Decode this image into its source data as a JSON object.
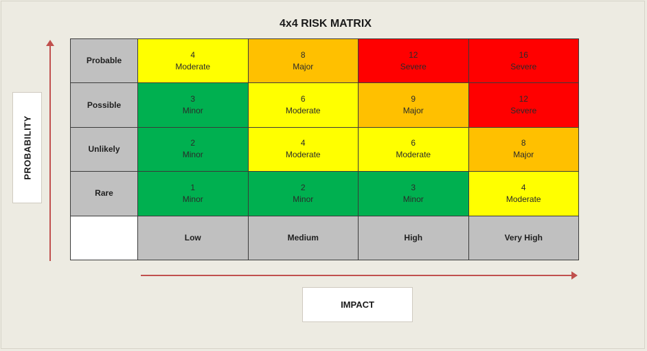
{
  "title": "4x4 RISK MATRIX",
  "axes": {
    "probability_label": "PROBABILITY",
    "impact_label": "IMPACT"
  },
  "colors": {
    "minor": "#00b050",
    "moderate": "#ffff00",
    "major": "#ffc000",
    "severe": "#ff0000",
    "header": "#c0c0c0",
    "arrow": "#c0504d"
  },
  "impact_levels": [
    "Low",
    "Medium",
    "High",
    "Very High"
  ],
  "rows": [
    {
      "probability": "Probable",
      "cells": [
        {
          "score": "4",
          "level": "Moderate"
        },
        {
          "score": "8",
          "level": "Major"
        },
        {
          "score": "12",
          "level": "Severe"
        },
        {
          "score": "16",
          "level": "Severe"
        }
      ]
    },
    {
      "probability": "Possible",
      "cells": [
        {
          "score": "3",
          "level": "Minor"
        },
        {
          "score": "6",
          "level": "Moderate"
        },
        {
          "score": "9",
          "level": "Major"
        },
        {
          "score": "12",
          "level": "Severe"
        }
      ]
    },
    {
      "probability": "Unlikely",
      "cells": [
        {
          "score": "2",
          "level": "Minor"
        },
        {
          "score": "4",
          "level": "Moderate"
        },
        {
          "score": "6",
          "level": "Moderate"
        },
        {
          "score": "8",
          "level": "Major"
        }
      ]
    },
    {
      "probability": "Rare",
      "cells": [
        {
          "score": "1",
          "level": "Minor"
        },
        {
          "score": "2",
          "level": "Minor"
        },
        {
          "score": "3",
          "level": "Minor"
        },
        {
          "score": "4",
          "level": "Moderate"
        }
      ]
    }
  ]
}
